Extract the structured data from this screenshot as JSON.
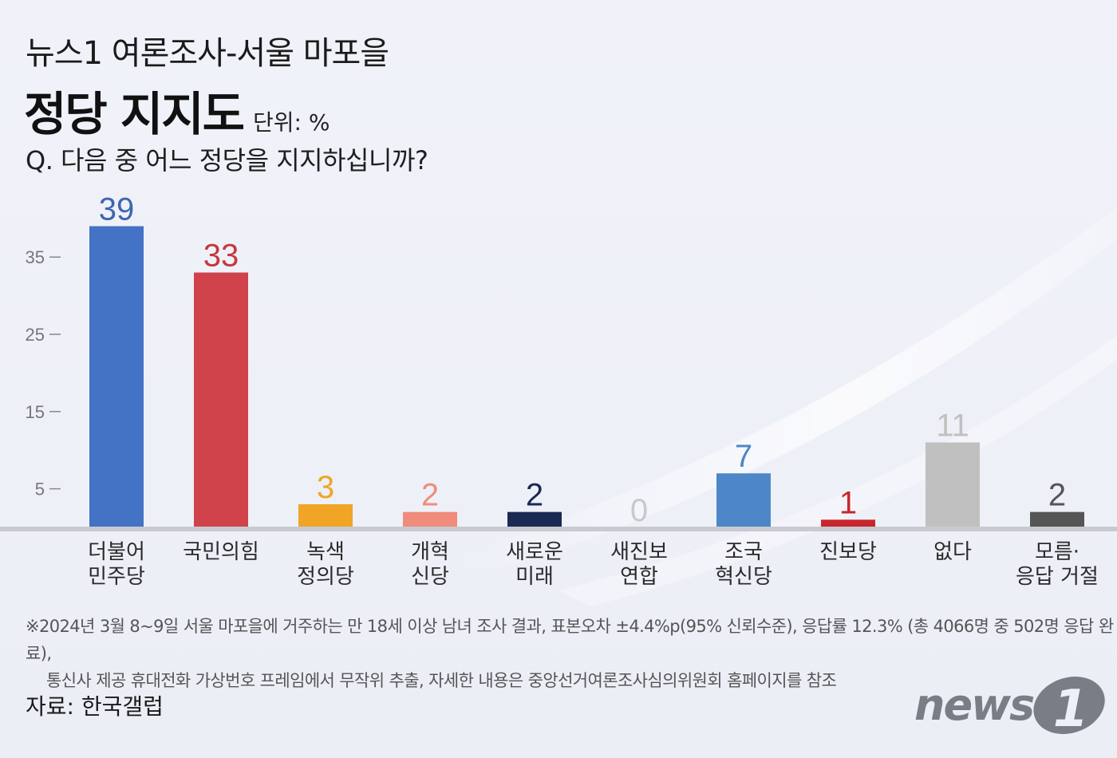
{
  "header": {
    "kicker": "뉴스1 여론조사-서울 마포을",
    "title": "정당 지지도",
    "unit": "단위: %",
    "question": "Q. 다음 중 어느 정당을 지지하십니까?"
  },
  "chart_data": {
    "type": "bar",
    "categories": [
      [
        "더불어",
        "민주당"
      ],
      [
        "국민의힘"
      ],
      [
        "녹색",
        "정의당"
      ],
      [
        "개혁",
        "신당"
      ],
      [
        "새로운",
        "미래"
      ],
      [
        "새진보",
        "연합"
      ],
      [
        "조국",
        "혁신당"
      ],
      [
        "진보당"
      ],
      [
        "없다"
      ],
      [
        "모름·",
        "응답 거절"
      ]
    ],
    "values": [
      39,
      33,
      3,
      2,
      2,
      0,
      7,
      1,
      11,
      2
    ],
    "bar_colors": [
      "#4472c4",
      "#d0434a",
      "#f0a526",
      "#ef8c7c",
      "#1b2a52",
      "#c8c8c8",
      "#4d87c7",
      "#c8262d",
      "#c0c0c0",
      "#555555"
    ],
    "label_colors": [
      "#3d66b0",
      "#c8363d",
      "#f0a526",
      "#ef8c7c",
      "#1b2a52",
      "#c8c8c8",
      "#4d87c7",
      "#c8262d",
      "#c0c0c0",
      "#555555"
    ],
    "yticks": [
      5,
      15,
      25,
      35
    ],
    "ylim": [
      0,
      40
    ],
    "grid": false,
    "legend": "none"
  },
  "footnote": {
    "line1": "※2024년 3월 8~9일 서울 마포을에 거주하는 만 18세 이상 남녀 조사 결과, 표본오차 ±4.4%p(95% 신뢰수준), 응답률 12.3% (총 4066명 중 502명 응답 완료),",
    "line2": "통신사 제공 휴대전화 가상번호 프레임에서 무작위 추출, 자세한 내용은 중앙선거여론조사심의위원회 홈페이지를 참조"
  },
  "source": "자료: 한국갤럽",
  "logo": {
    "text": "news",
    "mark": "1",
    "color": "#7a7d86"
  }
}
